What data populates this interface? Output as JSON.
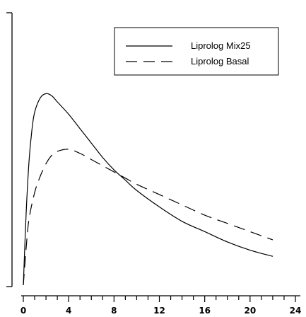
{
  "chart_data": {
    "type": "line",
    "title": "",
    "xlabel": "",
    "ylabel": "",
    "xlim": [
      0,
      24
    ],
    "ylim": [
      0,
      100
    ],
    "x_ticks": [
      0,
      4,
      8,
      12,
      16,
      20,
      24
    ],
    "x_tick_labels": [
      "0",
      "4",
      "8",
      "12",
      "16",
      "20",
      "24"
    ],
    "grid": false,
    "legend_position": "top-right",
    "series": [
      {
        "name": "Liprolog Mix25",
        "style": "solid",
        "color": "#000000",
        "x": [
          0,
          0.25,
          0.5,
          0.75,
          1,
          1.5,
          2,
          2.5,
          3,
          4,
          5,
          6,
          7,
          8,
          9,
          10,
          12,
          14,
          16,
          18,
          20,
          22
        ],
        "y": [
          0,
          35,
          60,
          75,
          84,
          91,
          93,
          92,
          89,
          83,
          76,
          69,
          62,
          56,
          51,
          46,
          38,
          31,
          26,
          21,
          17,
          14
        ]
      },
      {
        "name": "Liprolog Basal",
        "style": "dashed",
        "color": "#000000",
        "x": [
          0,
          0.25,
          0.5,
          1,
          1.5,
          2,
          2.5,
          3,
          4,
          5,
          6,
          7,
          8,
          9,
          10,
          12,
          14,
          16,
          18,
          20,
          22
        ],
        "y": [
          0,
          18,
          32,
          45,
          53,
          59,
          63,
          65,
          66,
          64,
          61,
          58,
          55,
          52,
          49,
          44,
          39,
          34,
          30,
          26,
          22
        ]
      }
    ]
  }
}
